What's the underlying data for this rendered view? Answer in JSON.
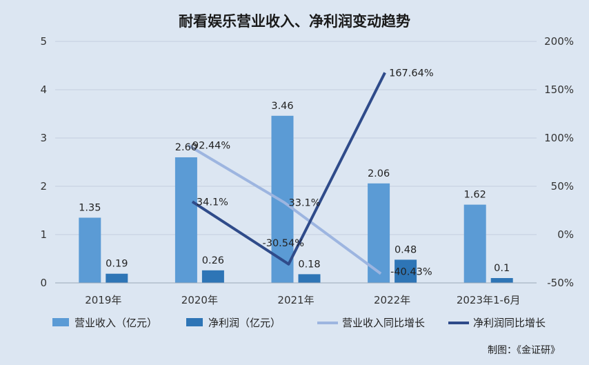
{
  "chart_data": {
    "type": "bar",
    "title": "耐看娱乐营业收入、净利润变动趋势",
    "categories": [
      "2019年",
      "2020年",
      "2021年",
      "2022年",
      "2023年1-6月"
    ],
    "y_left": {
      "ticks": [
        "0",
        "1",
        "2",
        "3",
        "4",
        "5"
      ],
      "ylim": [
        0,
        5
      ]
    },
    "y_right": {
      "ticks": [
        "-50%",
        "0%",
        "50%",
        "100%",
        "150%",
        "200%"
      ],
      "ylim": [
        -50,
        200
      ]
    },
    "series": [
      {
        "name": "营业收入（亿元）",
        "kind": "bar",
        "axis": "left",
        "color": "#5b9bd5",
        "values": [
          1.35,
          2.6,
          3.46,
          2.06,
          1.62
        ],
        "labels": [
          "1.35",
          "2.60",
          "3.46",
          "2.06",
          "1.62"
        ]
      },
      {
        "name": "净利润（亿元）",
        "kind": "bar",
        "axis": "left",
        "color": "#2e75b6",
        "values": [
          0.19,
          0.26,
          0.18,
          0.48,
          0.1
        ],
        "labels": [
          "0.19",
          "0.26",
          "0.18",
          "0.48",
          "0.1"
        ]
      },
      {
        "name": "营业收入同比增长",
        "kind": "line",
        "axis": "right",
        "color": "#9db5e0",
        "values": [
          null,
          92.44,
          33.1,
          -40.43,
          null
        ],
        "labels": [
          null,
          "92.44%",
          "33.1%",
          "-40.43%",
          null
        ]
      },
      {
        "name": "净利润同比增长",
        "kind": "line",
        "axis": "right",
        "color": "#2f4b8a",
        "values": [
          null,
          34.1,
          -30.54,
          167.64,
          null
        ],
        "labels": [
          null,
          "34.1%",
          "-30.54%",
          "167.64%",
          null
        ]
      }
    ],
    "grid": true,
    "legend_position": "bottom",
    "credit": "制图：《金证研》"
  }
}
